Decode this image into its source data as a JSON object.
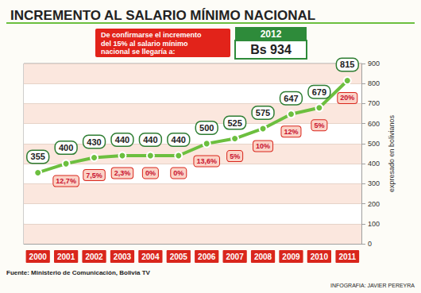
{
  "chart_data": {
    "type": "line",
    "title": "INCREMENTO AL SALARIO MÍNIMO NACIONAL",
    "categories": [
      "2000",
      "2001",
      "2002",
      "2003",
      "2004",
      "2005",
      "2006",
      "2007",
      "2008",
      "2009",
      "2010",
      "2011"
    ],
    "values": [
      355,
      400,
      430,
      440,
      440,
      440,
      500,
      525,
      575,
      647,
      679,
      815
    ],
    "color": "#6cbf3f",
    "ylim": [
      0,
      900
    ],
    "yticks": [
      0,
      100,
      200,
      300,
      400,
      500,
      600,
      700,
      800,
      900
    ],
    "grid": true,
    "data_labels": true,
    "ylabel": "expresado en bolivianos",
    "annotations": {
      "change_labels": [
        "12,7%",
        "7,5%",
        "2,3%",
        "0%",
        "0%",
        "13,6%",
        "5%",
        "10%",
        "12%",
        "5%",
        "20%"
      ],
      "callout": "De confirmarse el incremento\ndel 15% al salario mínimo\nnacional se llegaría a:",
      "callout_year": "2012",
      "callout_value": "Bs 934",
      "source": "Fuente: Ministerio de Comunicación, Bolivia TV",
      "credit": "INFOGRAFIA: JAVIER PEREYRA"
    }
  }
}
